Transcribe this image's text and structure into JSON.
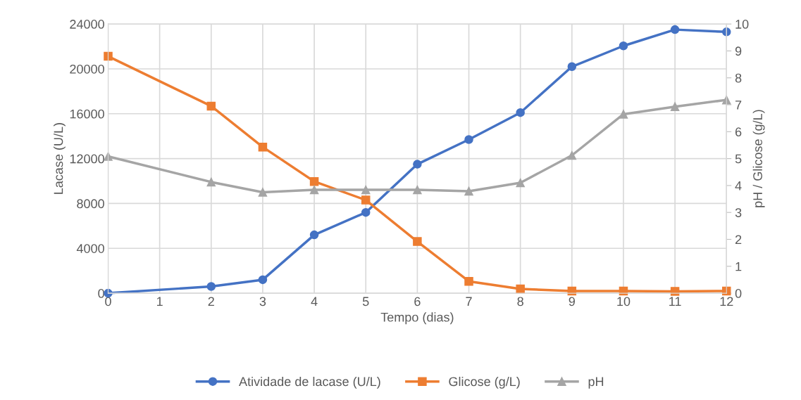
{
  "chart_data": {
    "type": "line",
    "xlabel": "Tempo (dias)",
    "ylabel": "Lacase (U/L)",
    "y2label": "pH / Glicose (g/L)",
    "xlim": [
      0,
      12
    ],
    "xticks": [
      0,
      1,
      2,
      3,
      4,
      5,
      6,
      7,
      8,
      9,
      10,
      11,
      12
    ],
    "ylim": [
      0,
      24000
    ],
    "yticks": [
      0,
      4000,
      8000,
      12000,
      16000,
      20000,
      24000
    ],
    "y2lim": [
      0,
      10
    ],
    "y2ticks": [
      0,
      1,
      2,
      3,
      4,
      5,
      6,
      7,
      8,
      9,
      10
    ],
    "x": [
      0,
      2,
      3,
      4,
      5,
      6,
      7,
      8,
      9,
      10,
      11,
      12
    ],
    "grid": true,
    "legend": "bottom",
    "line_style": "solid",
    "series": [
      {
        "name": "Atividade de lacase (U/L)",
        "color": "#4472c4",
        "marker": "circle",
        "values": [
          0,
          600,
          1200,
          5200,
          7200,
          11500,
          13700,
          16100,
          20200,
          22050,
          23500,
          23300
        ]
      },
      {
        "name": "Glicose (g/L)",
        "color": "#ed7d31",
        "marker": "square",
        "axis": "y2",
        "values": [
          8.8,
          6.95,
          5.43,
          4.15,
          3.46,
          1.92,
          0.44,
          0.16,
          0.08,
          0.08,
          0.07,
          0.08
        ]
      },
      {
        "name": "pH",
        "color": "#a5a5a5",
        "marker": "triangle",
        "axis": "y2",
        "values": [
          5.08,
          4.13,
          3.75,
          3.84,
          3.84,
          3.84,
          3.79,
          4.1,
          5.12,
          6.65,
          6.93,
          7.18
        ]
      }
    ]
  }
}
